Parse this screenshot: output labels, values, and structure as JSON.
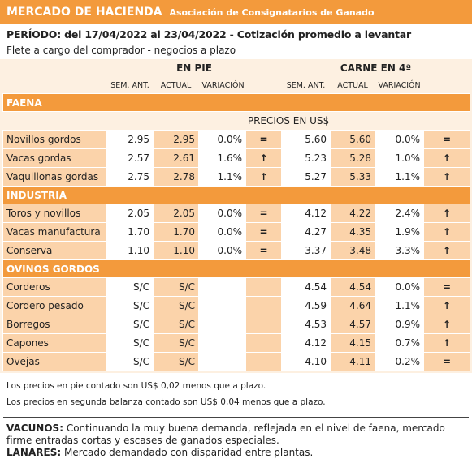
{
  "header": {
    "title": "MERCADO DE HACIENDA",
    "subtitle": "Asociación de Consignatarios de Ganado",
    "period": "PERÍODO: del 17/04/2022 al 23/04/2022 - Cotización promedio a levantar",
    "note": "Flete a cargo del comprador - negocios a plazo"
  },
  "table": {
    "groups": [
      "EN PIE",
      "CARNE EN 4ª"
    ],
    "columns": [
      "SEM. ANT.",
      "ACTUAL",
      "VARIACIÓN",
      "SEM. ANT.",
      "ACTUAL",
      "VARIACIÓN"
    ],
    "unit": "PRECIOS EN US$",
    "sections": [
      {
        "name": "FAENA",
        "rows": [
          [
            "Novillos gordos",
            "2.95",
            "2.95",
            "0.0%",
            "=",
            "5.60",
            "5.60",
            "0.0%",
            "="
          ],
          [
            "Vacas gordas",
            "2.57",
            "2.61",
            "1.6%",
            "↑",
            "5.23",
            "5.28",
            "1.0%",
            "↑"
          ],
          [
            "Vaquillonas gordas",
            "2.75",
            "2.78",
            "1.1%",
            "↑",
            "5.27",
            "5.33",
            "1.1%",
            "↑"
          ]
        ]
      },
      {
        "name": "INDUSTRIA",
        "rows": [
          [
            "Toros y novillos",
            "2.05",
            "2.05",
            "0.0%",
            "=",
            "4.12",
            "4.22",
            "2.4%",
            "↑"
          ],
          [
            "Vacas manufactura",
            "1.70",
            "1.70",
            "0.0%",
            "=",
            "4.27",
            "4.35",
            "1.9%",
            "↑"
          ],
          [
            "Conserva",
            "1.10",
            "1.10",
            "0.0%",
            "=",
            "3.37",
            "3.48",
            "3.3%",
            "↑"
          ]
        ]
      },
      {
        "name": "OVINOS GORDOS",
        "rows": [
          [
            "Corderos",
            "S/C",
            "S/C",
            null,
            null,
            "4.54",
            "4.54",
            "0.0%",
            "="
          ],
          [
            "Cordero pesado",
            "S/C",
            "S/C",
            null,
            null,
            "4.59",
            "4.64",
            "1.1%",
            "↑"
          ],
          [
            "Borregos",
            "S/C",
            "S/C",
            null,
            null,
            "4.53",
            "4.57",
            "0.9%",
            "↑"
          ],
          [
            "Capones",
            "S/C",
            "S/C",
            null,
            null,
            "4.12",
            "4.15",
            "0.7%",
            "↑"
          ],
          [
            "Ovejas",
            "S/C",
            "S/C",
            null,
            null,
            "4.10",
            "4.11",
            "0.2%",
            "="
          ]
        ]
      }
    ]
  },
  "notes": [
    "Los precios en pie contado son US$ 0,02 menos que a plazo.",
    "Los precios en segunda balanza contado son US$ 0,04 menos que a plazo."
  ],
  "comments": [
    {
      "label": "VACUNOS:",
      "text": "Continuando la muy buena demanda, reflejada en el nivel de faena, mercado firme entradas cortas y escases de ganados especiales."
    },
    {
      "label": "LANARES:",
      "text": "Mercado demandado con disparidad entre plantas."
    }
  ]
}
